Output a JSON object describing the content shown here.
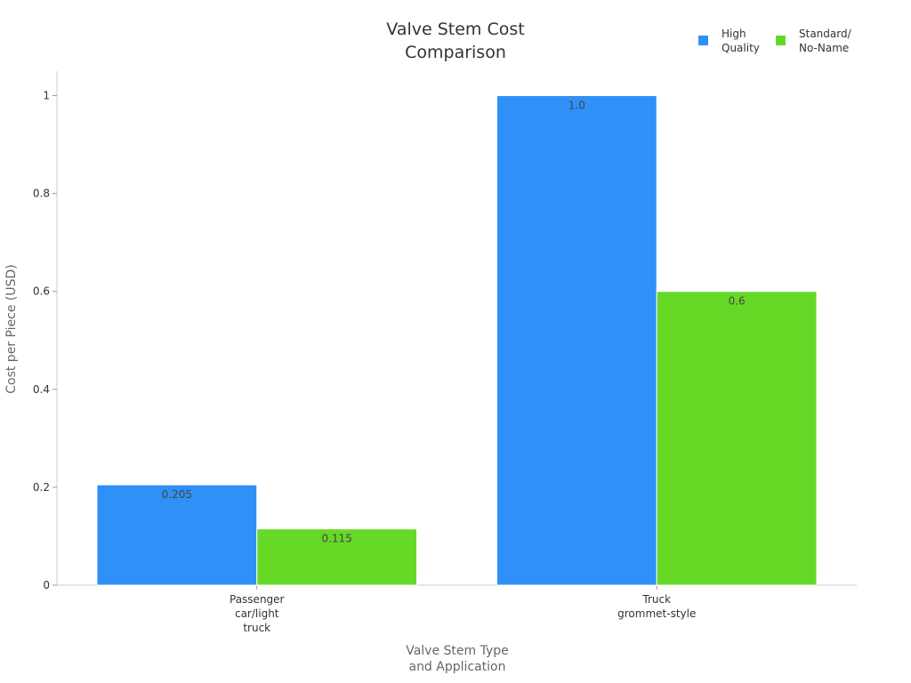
{
  "chart_data": {
    "type": "bar",
    "title": "Valve Stem Cost\nComparison",
    "x_label": "Valve Stem Type\nand Application",
    "y_label": "Cost per Piece (USD)",
    "categories": [
      "Passenger\ncar/light\ntruck",
      "Truck\ngrommet-style"
    ],
    "series": [
      {
        "name": "High\nQuality",
        "color": "#3090f8",
        "values": [
          0.205,
          1.0
        ],
        "value_labels": [
          "0.205",
          "1.0"
        ]
      },
      {
        "name": "Standard/\nNo-Name",
        "color": "#66d926",
        "values": [
          0.115,
          0.6
        ],
        "value_labels": [
          "0.115",
          "0.6"
        ]
      }
    ],
    "ylim": [
      0,
      1.05
    ],
    "yticks": [
      0,
      0.2,
      0.4,
      0.6,
      0.8,
      1
    ],
    "grid": false,
    "legend": "top-right"
  }
}
